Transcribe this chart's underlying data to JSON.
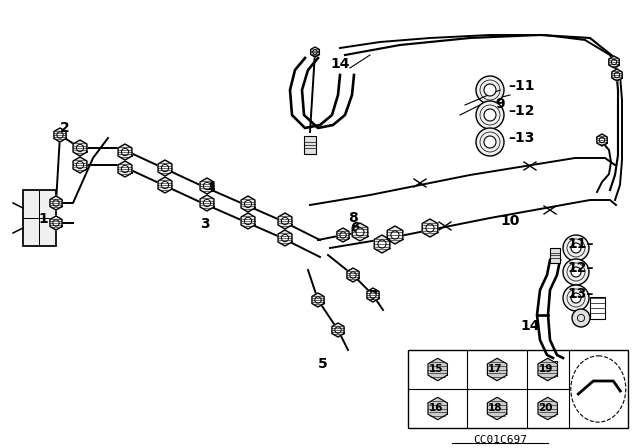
{
  "bg_color": "#ffffff",
  "lc": "#000000",
  "lw": 1.4,
  "fig_width": 6.4,
  "fig_height": 4.48,
  "dpi": 100,
  "watermark": "CC01C697"
}
